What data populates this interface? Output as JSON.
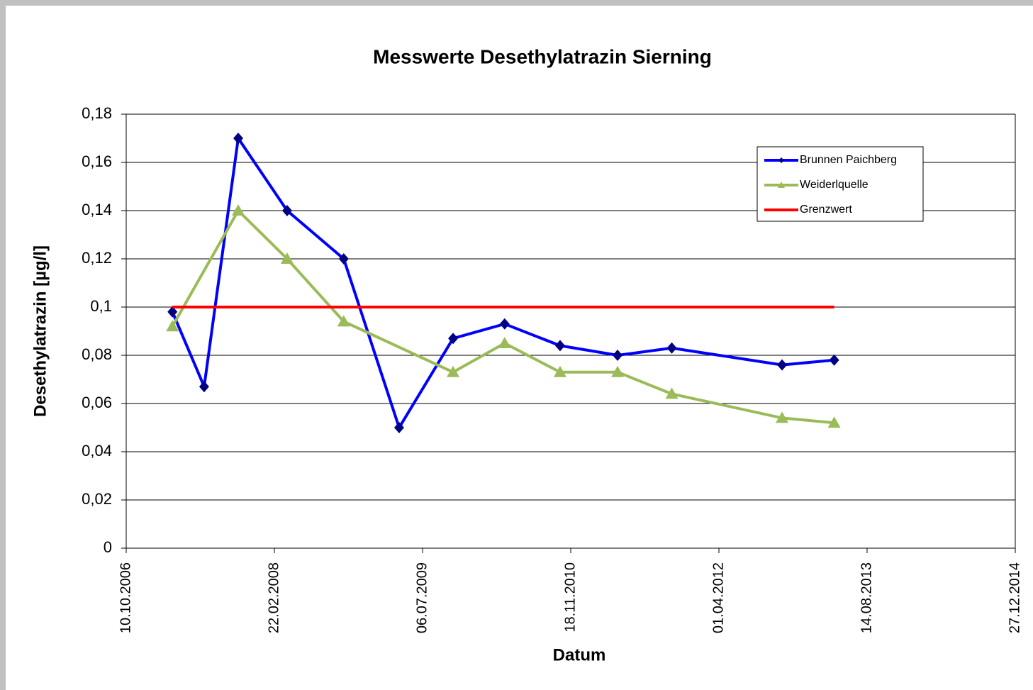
{
  "chart_data": {
    "type": "line",
    "title": "Messwerte Desethylatrazin Sierning",
    "x_label": "Datum",
    "y_label": "Desethylatrazin [µg/l]",
    "xlim": [
      "10.10.2006",
      "27.12.2014"
    ],
    "xticks": [
      "10.10.2006",
      "22.02.2008",
      "06.07.2009",
      "18.11.2010",
      "01.04.2012",
      "14.08.2013",
      "27.12.2014"
    ],
    "ylim": [
      0,
      0.18
    ],
    "yticks": [
      0,
      {
        "value": 0.02,
        "label": "0,02"
      },
      {
        "value": 0.04,
        "label": "0,04"
      },
      {
        "value": 0.06,
        "label": "0,06"
      },
      {
        "value": 0.08,
        "label": "0,08"
      },
      {
        "value": 0.1,
        "label": "0,1"
      },
      {
        "value": 0.12,
        "label": "0,12"
      },
      {
        "value": 0.14,
        "label": "0,14"
      },
      {
        "value": 0.16,
        "label": "0,16"
      },
      {
        "value": 0.18,
        "label": "0,18"
      }
    ],
    "grid": true,
    "legend": "upper right",
    "series": [
      {
        "name": "Brunnen Paichberg",
        "color": "#0000ff",
        "marker": "diamond",
        "x": [
          "15.03.2007",
          "30.06.2007",
          "23.10.2007",
          "05.04.2008",
          "13.10.2008",
          "18.04.2009",
          "17.10.2009",
          "09.04.2010",
          "13.10.2010",
          "25.04.2011",
          "25.10.2011",
          "31.10.2012",
          "25.04.2013"
        ],
        "values": [
          0.098,
          0.067,
          0.17,
          0.14,
          0.12,
          0.05,
          0.087,
          0.093,
          0.084,
          0.08,
          0.083,
          0.076,
          0.078
        ]
      },
      {
        "name": "Weiderlquelle",
        "color": "#9bbb59",
        "marker": "triangle",
        "x": [
          "15.03.2007",
          "23.10.2007",
          "05.04.2008",
          "13.10.2008",
          "17.10.2009",
          "09.04.2010",
          "13.10.2010",
          "25.04.2011",
          "25.10.2011",
          "31.10.2012",
          "25.04.2013"
        ],
        "values": [
          0.092,
          0.14,
          0.12,
          0.094,
          0.073,
          0.085,
          0.073,
          0.073,
          0.064,
          0.054,
          0.052
        ]
      },
      {
        "name": "Grenzwert",
        "color": "#ff0000",
        "marker": "none",
        "x": [
          "15.03.2007",
          "25.04.2013"
        ],
        "values": [
          0.1,
          0.1
        ]
      }
    ]
  }
}
